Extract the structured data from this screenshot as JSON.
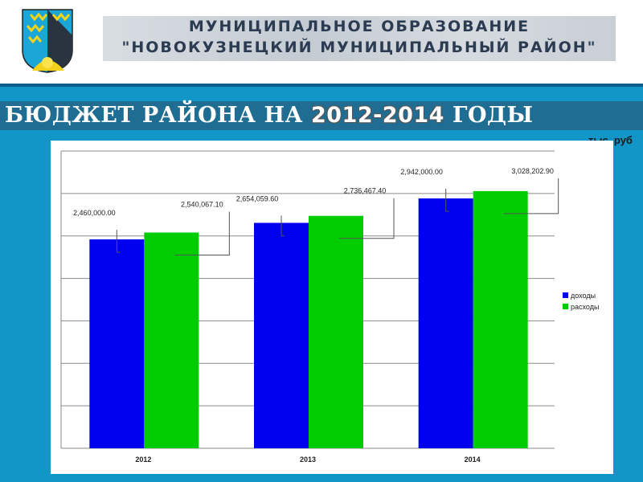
{
  "header": {
    "line1": "МУНИЦИПАЛЬНОЕ ОБРАЗОВАНИЕ",
    "line2": "\"НОВОКУЗНЕЦКИЙ МУНИЦИПАЛЬНЫЙ РАЙОН\""
  },
  "title": {
    "prefix": "БЮДЖЕТ РАЙОНА НА ",
    "years": "2012-2014",
    "suffix": " ГОДЫ"
  },
  "unit_label": "тыс. руб",
  "colors": {
    "header_band": "#ffffff",
    "background": "#1296c7",
    "title_band": "#1f6d92",
    "income": "#0000ee",
    "expense": "#00cc00"
  },
  "icons": {
    "coat_of_arms": "coat-of-arms-icon"
  },
  "chart_data": {
    "type": "bar",
    "categories": [
      "2012",
      "2013",
      "2014"
    ],
    "series": [
      {
        "name": "доходы",
        "values": [
          2460000.0,
          2654059.6,
          2942000.0
        ],
        "labels": [
          "2,460,000.00",
          "2,654,059.60",
          "2,942,000.00"
        ]
      },
      {
        "name": "расходы",
        "values": [
          2540067.1,
          2736467.4,
          3028202.9
        ],
        "labels": [
          "2,540,067.10",
          "2,736,467.40",
          "3,028,202.90"
        ]
      }
    ],
    "ylim": [
      0,
      3500000
    ],
    "grid": true,
    "legend": "right"
  }
}
